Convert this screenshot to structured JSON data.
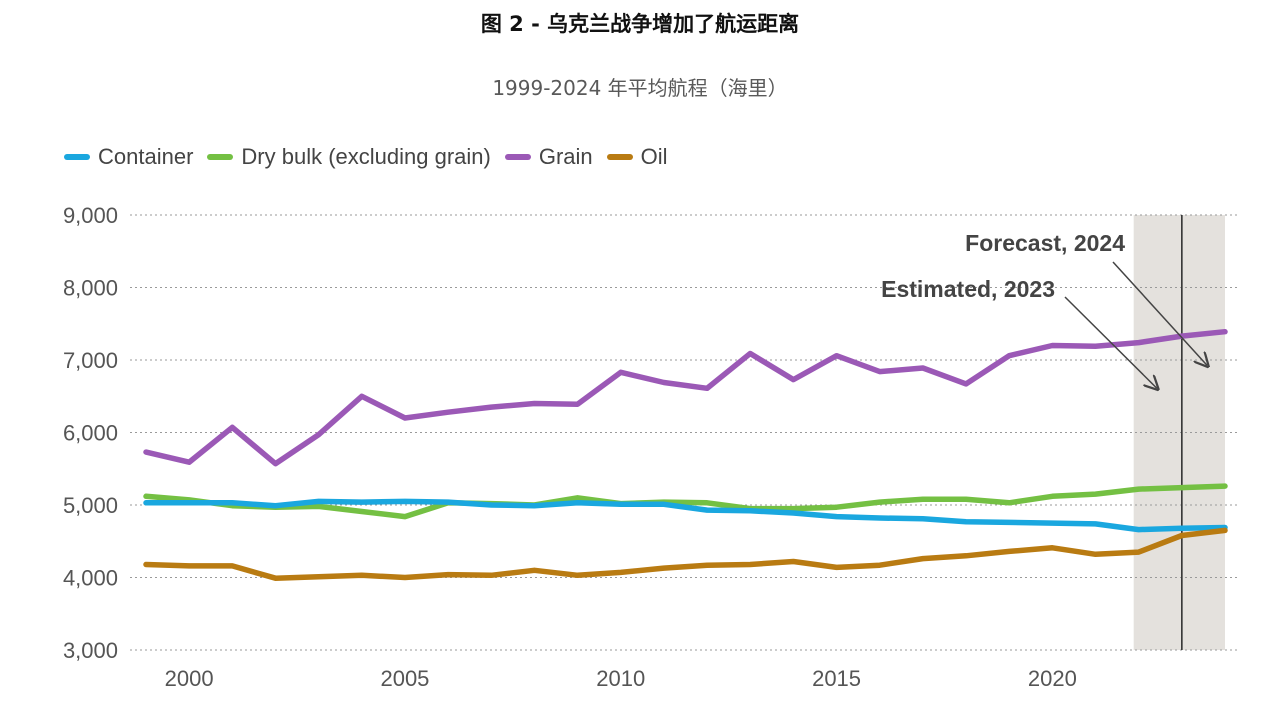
{
  "title": "图 2 - 乌克兰战争增加了航运距离",
  "subtitle": "1999-2024 年平均航程（海里）",
  "colors": {
    "container": "#1aa7df",
    "dry_bulk": "#74c043",
    "grain": "#9b59b6",
    "oil": "#b97b12",
    "shade": "#e4e1dd"
  },
  "chart_data": {
    "type": "line",
    "x": [
      1999,
      2000,
      2001,
      2002,
      2003,
      2004,
      2005,
      2006,
      2007,
      2008,
      2009,
      2010,
      2011,
      2012,
      2013,
      2014,
      2015,
      2016,
      2017,
      2018,
      2019,
      2020,
      2021,
      2022,
      2023,
      2024
    ],
    "series": [
      {
        "name": "Container",
        "color": "#1aa7df",
        "values": [
          5030,
          5030,
          5030,
          4990,
          5050,
          5040,
          5050,
          5040,
          5000,
          4990,
          5030,
          5010,
          5010,
          4930,
          4920,
          4890,
          4840,
          4820,
          4810,
          4770,
          4760,
          4750,
          4740,
          4660,
          4680,
          4690
        ]
      },
      {
        "name": "Dry bulk (excluding grain)",
        "color": "#74c043",
        "values": [
          5120,
          5070,
          4990,
          4970,
          4980,
          4910,
          4840,
          5030,
          5020,
          5000,
          5100,
          5020,
          5040,
          5030,
          4950,
          4950,
          4970,
          5040,
          5080,
          5080,
          5030,
          5120,
          5150,
          5220,
          5240,
          5260
        ]
      },
      {
        "name": "Grain",
        "color": "#9b59b6",
        "values": [
          5730,
          5590,
          6070,
          5570,
          5970,
          6500,
          6200,
          6280,
          6350,
          6400,
          6390,
          6830,
          6690,
          6610,
          7090,
          6730,
          7060,
          6840,
          6890,
          6670,
          7060,
          7200,
          7190,
          7240,
          7330,
          7390
        ]
      },
      {
        "name": "Oil",
        "color": "#b97b12",
        "values": [
          4180,
          4160,
          4160,
          3990,
          4010,
          4030,
          4000,
          4040,
          4030,
          4100,
          4030,
          4070,
          4130,
          4170,
          4180,
          4220,
          4140,
          4170,
          4260,
          4300,
          4360,
          4410,
          4320,
          4350,
          4580,
          4650
        ]
      }
    ],
    "xticks": [
      "2000",
      "2005",
      "2010",
      "2015",
      "2020"
    ],
    "xtick_values": [
      2000,
      2005,
      2010,
      2015,
      2020
    ],
    "yticks": [
      "3,000",
      "4,000",
      "5,000",
      "6,000",
      "7,000",
      "8,000",
      "9,000"
    ],
    "ytick_values": [
      3000,
      4000,
      5000,
      6000,
      7000,
      8000,
      9000
    ],
    "ylim": [
      3000,
      9000
    ],
    "xlim": [
      1999,
      2024
    ],
    "grid": true,
    "legend": "top-left",
    "shaded_range": [
      2022,
      2024
    ],
    "vline": 2023,
    "annotations": {
      "estimated": {
        "text": "Estimated, 2023",
        "x": 2023,
        "y": 6500
      },
      "forecast": {
        "text": "Forecast, 2024",
        "x": 2024,
        "y": 6900
      }
    }
  }
}
